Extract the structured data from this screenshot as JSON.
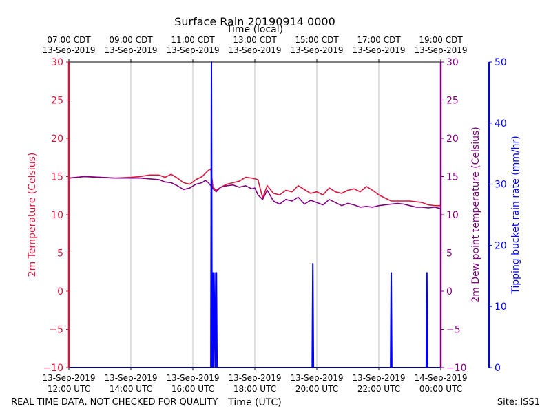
{
  "chart_data": {
    "type": "line",
    "title": "Surface Rain 20190914 0000",
    "top_xlabel": "Time (local)",
    "xlabel": "Time (UTC)",
    "ylabel_left": "2m Temperature (Celsius)",
    "ylabel_right": "2m Dew point temperature (Celsius)",
    "ylabel_far_right": "Tipping bucket rain rate (mm/hr)",
    "footer_left": "REAL TIME DATA, NOT CHECKED FOR QUALITY",
    "footer_right": "Site: ISS1",
    "xlim_utc_hours": [
      12,
      24
    ],
    "ylim": [
      -10,
      30
    ],
    "ylim_rain": [
      0,
      50
    ],
    "grid": "vertical",
    "colors": {
      "temperature": "#dc143c",
      "dewpoint": "#800080",
      "rain": "#0000ff"
    },
    "bottom_ticks": [
      {
        "h": 12,
        "l1": "13-Sep-2019",
        "l2": "12:00 UTC"
      },
      {
        "h": 14,
        "l1": "13-Sep-2019",
        "l2": "14:00 UTC"
      },
      {
        "h": 16,
        "l1": "13-Sep-2019",
        "l2": "16:00 UTC"
      },
      {
        "h": 18,
        "l1": "13-Sep-2019",
        "l2": "18:00 UTC"
      },
      {
        "h": 20,
        "l1": "13-Sep-2019",
        "l2": "20:00 UTC"
      },
      {
        "h": 22,
        "l1": "13-Sep-2019",
        "l2": "22:00 UTC"
      },
      {
        "h": 24,
        "l1": "14-Sep-2019",
        "l2": "00:00 UTC"
      }
    ],
    "top_ticks": [
      {
        "h": 12,
        "l1": "07:00 CDT",
        "l2": "13-Sep-2019"
      },
      {
        "h": 14,
        "l1": "09:00 CDT",
        "l2": "13-Sep-2019"
      },
      {
        "h": 16,
        "l1": "11:00 CDT",
        "l2": "13-Sep-2019"
      },
      {
        "h": 18,
        "l1": "13:00 CDT",
        "l2": "13-Sep-2019"
      },
      {
        "h": 20,
        "l1": "15:00 CDT",
        "l2": "13-Sep-2019"
      },
      {
        "h": 22,
        "l1": "17:00 CDT",
        "l2": "13-Sep-2019"
      },
      {
        "h": 24,
        "l1": "19:00 CDT",
        "l2": "13-Sep-2019"
      }
    ],
    "y_ticks": [
      -10,
      -5,
      0,
      5,
      10,
      15,
      20,
      25,
      30
    ],
    "rain_ticks": [
      0,
      10,
      20,
      30,
      40,
      50
    ],
    "series": [
      {
        "key": "temperature",
        "x": [
          12.0,
          12.5,
          13.0,
          13.5,
          14.0,
          14.3,
          14.6,
          14.9,
          15.1,
          15.3,
          15.5,
          15.7,
          15.9,
          16.1,
          16.3,
          16.5,
          16.58,
          16.65,
          16.75,
          16.9,
          17.1,
          17.3,
          17.5,
          17.7,
          17.9,
          18.1,
          18.25,
          18.4,
          18.6,
          18.8,
          19.0,
          19.2,
          19.4,
          19.6,
          19.8,
          20.0,
          20.2,
          20.4,
          20.6,
          20.8,
          21.0,
          21.2,
          21.4,
          21.6,
          21.8,
          22.0,
          22.2,
          22.4,
          22.6,
          22.8,
          23.0,
          23.2,
          23.4,
          23.6,
          23.8,
          24.0
        ],
        "values": [
          14.8,
          15.0,
          14.9,
          14.8,
          14.9,
          15.0,
          15.2,
          15.2,
          14.9,
          15.3,
          14.8,
          14.2,
          14.0,
          14.6,
          15.0,
          15.8,
          16.0,
          13.6,
          13.2,
          13.6,
          14.0,
          14.2,
          14.4,
          14.9,
          14.8,
          14.6,
          12.2,
          13.8,
          12.8,
          12.6,
          13.2,
          13.0,
          13.8,
          13.3,
          12.8,
          13.0,
          12.6,
          13.5,
          13.0,
          12.8,
          13.2,
          13.4,
          13.0,
          13.7,
          13.2,
          12.6,
          12.2,
          11.8,
          11.8,
          11.8,
          11.8,
          11.7,
          11.6,
          11.3,
          11.2,
          11.2
        ]
      },
      {
        "key": "dewpoint",
        "x": [
          12.0,
          12.5,
          13.0,
          13.5,
          14.0,
          14.3,
          14.6,
          14.9,
          15.1,
          15.3,
          15.5,
          15.7,
          15.9,
          16.1,
          16.3,
          16.4,
          16.5,
          16.58,
          16.65,
          16.75,
          16.9,
          17.1,
          17.3,
          17.5,
          17.7,
          17.9,
          18.0,
          18.1,
          18.25,
          18.4,
          18.6,
          18.8,
          19.0,
          19.2,
          19.4,
          19.6,
          19.8,
          20.0,
          20.2,
          20.4,
          20.6,
          20.8,
          21.0,
          21.2,
          21.4,
          21.6,
          21.8,
          22.0,
          22.2,
          22.4,
          22.6,
          22.8,
          23.0,
          23.2,
          23.4,
          23.6,
          23.8,
          24.0
        ],
        "values": [
          14.8,
          15.0,
          14.9,
          14.8,
          14.8,
          14.8,
          14.7,
          14.6,
          14.3,
          14.2,
          13.8,
          13.3,
          13.5,
          14.0,
          14.2,
          14.5,
          14.2,
          13.8,
          13.4,
          13.0,
          13.6,
          13.8,
          13.9,
          13.6,
          13.8,
          13.4,
          13.5,
          12.6,
          12.0,
          13.2,
          11.8,
          11.4,
          12.0,
          11.8,
          12.3,
          11.4,
          11.9,
          11.6,
          11.3,
          12.0,
          11.6,
          11.2,
          11.5,
          11.3,
          11.0,
          11.1,
          11.0,
          11.2,
          11.3,
          11.4,
          11.5,
          11.4,
          11.2,
          11.0,
          11.0,
          10.9,
          11.0,
          10.8
        ]
      },
      {
        "key": "rain",
        "x": [
          12.0,
          16.58,
          16.6,
          16.62,
          16.64,
          16.66,
          16.68,
          16.72,
          16.74,
          16.76,
          16.78,
          16.8,
          19.85,
          19.87,
          19.89,
          22.38,
          22.4,
          22.42,
          23.53,
          23.55,
          23.57,
          24.0
        ],
        "values": [
          0,
          0,
          50,
          0,
          15.5,
          0,
          15.5,
          0,
          15.5,
          15.5,
          0,
          0,
          0,
          17,
          0,
          0,
          15.5,
          0,
          0,
          15.5,
          0,
          0
        ]
      }
    ]
  }
}
